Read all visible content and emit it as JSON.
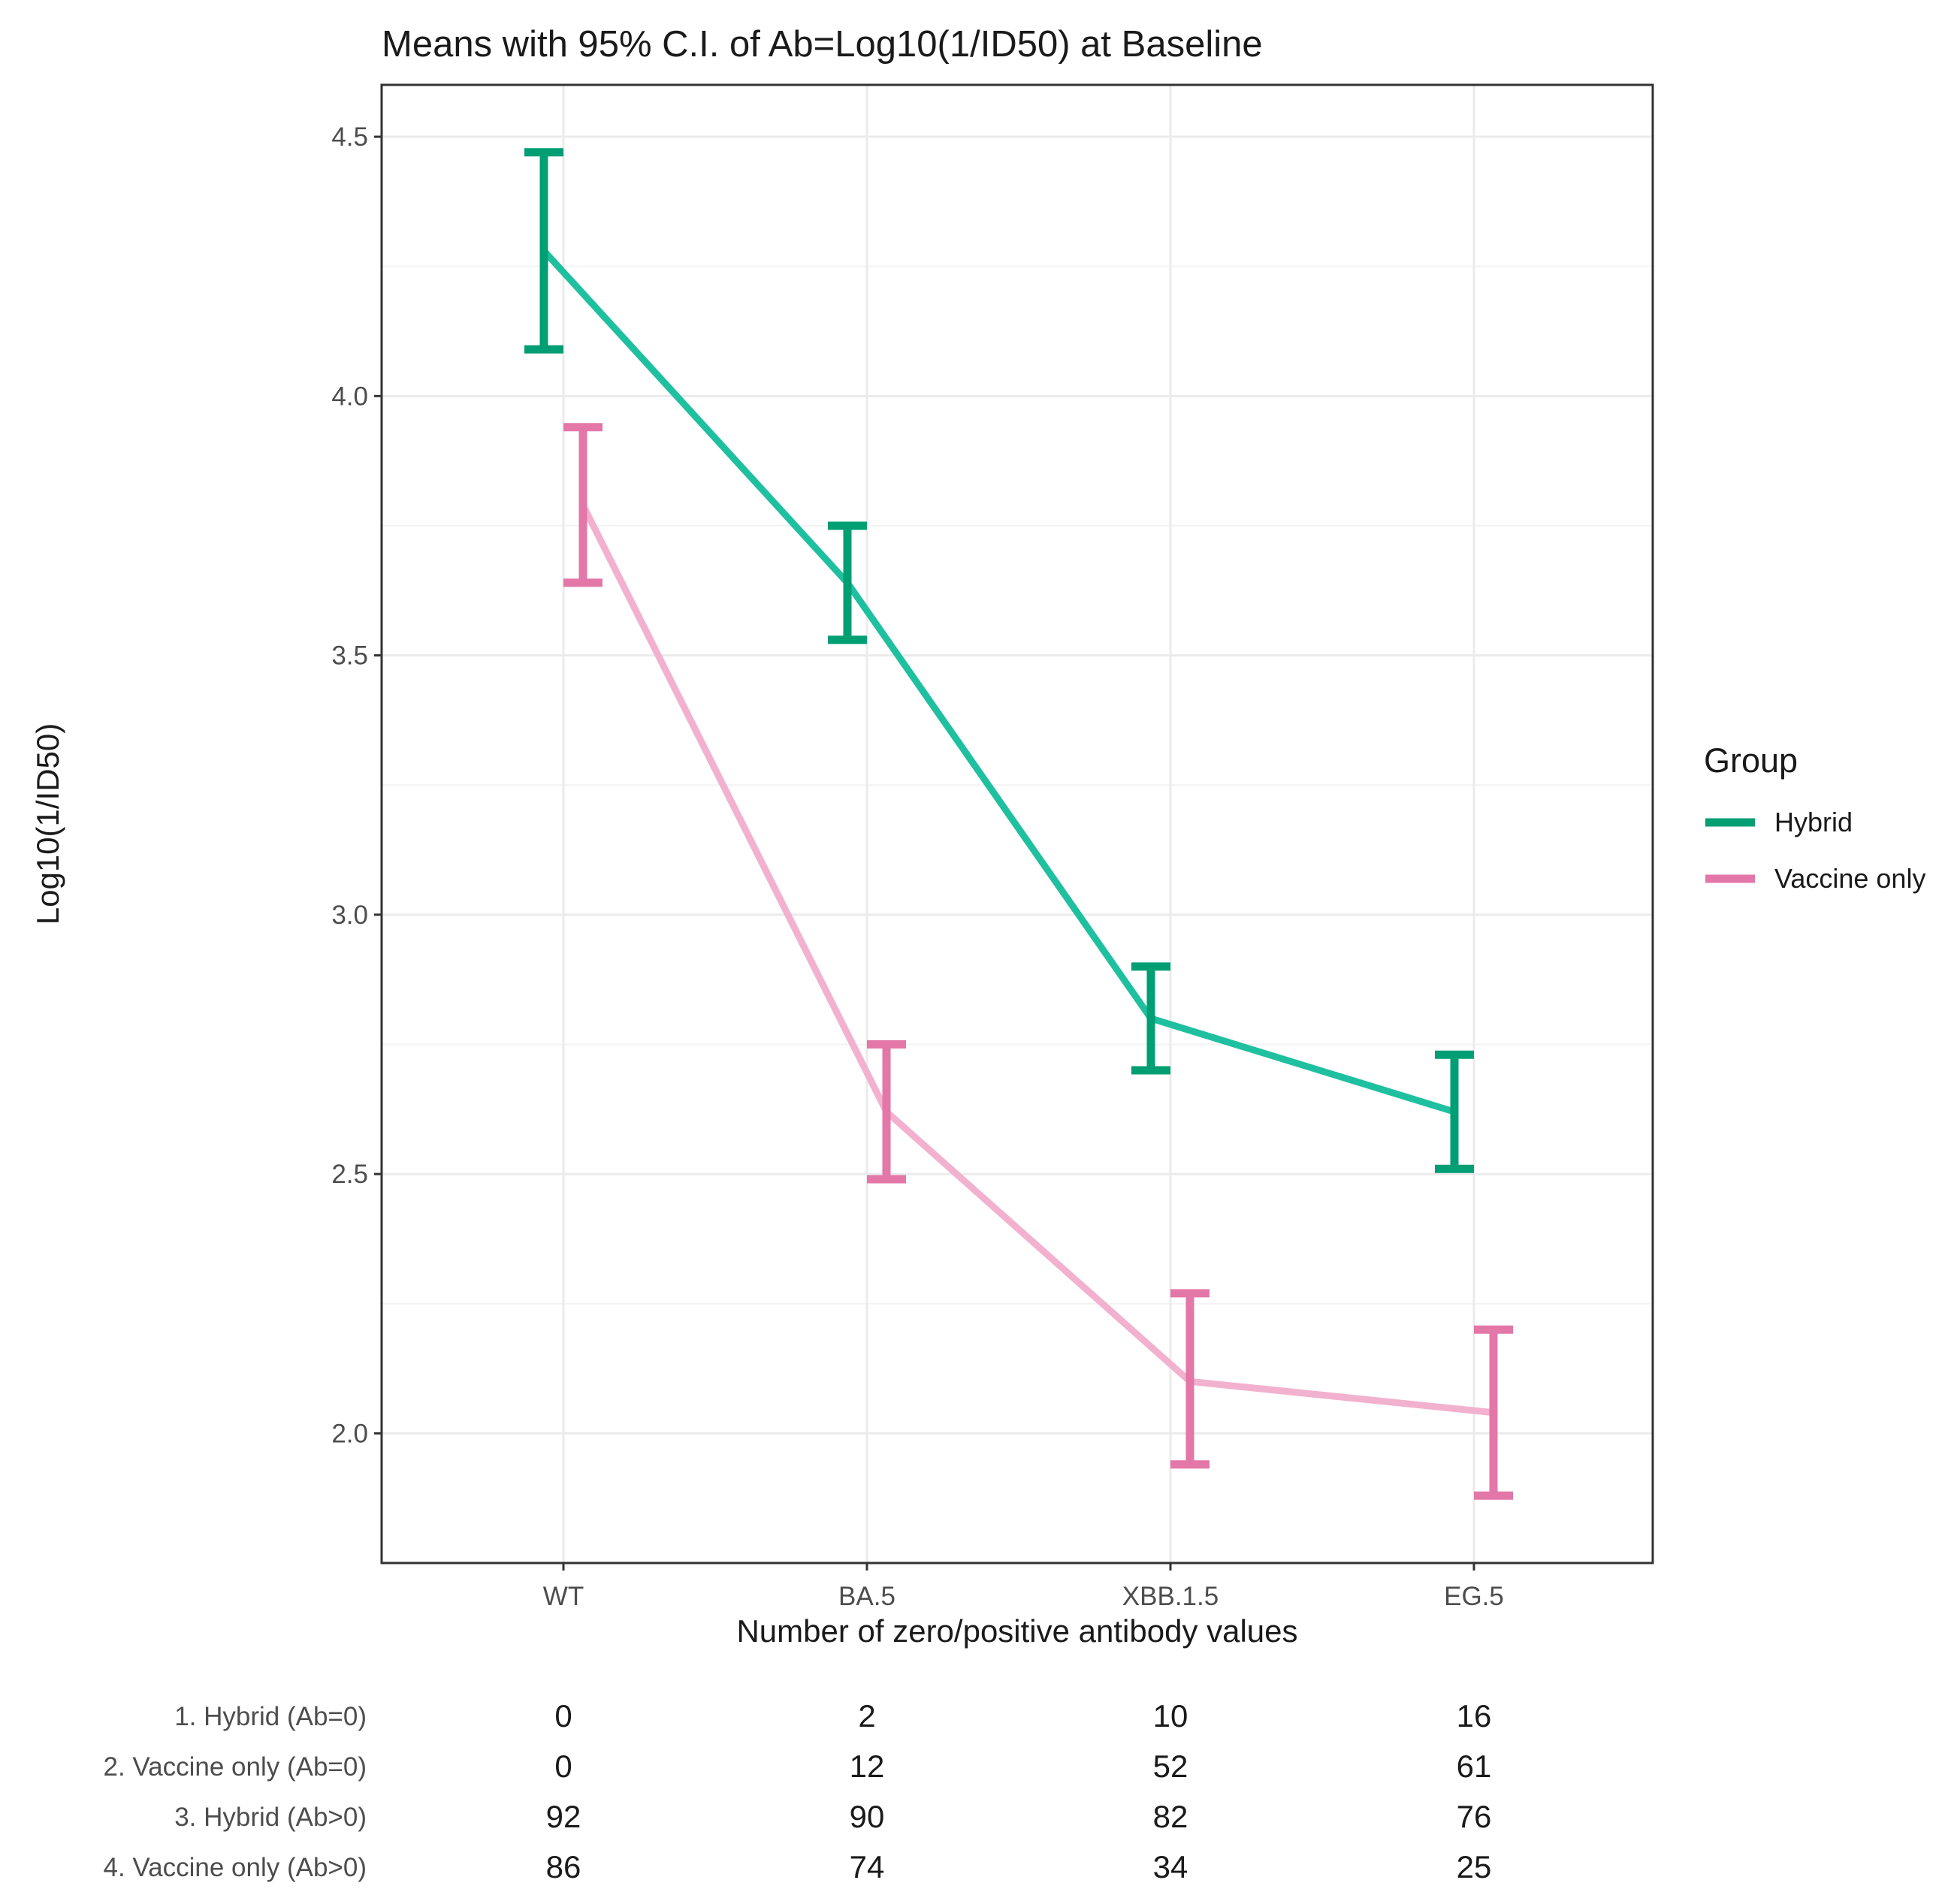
{
  "chart_data": {
    "type": "line",
    "title": "Means with 95% C.I. of Ab=Log10(1/ID50) at Baseline",
    "xlabel": "Number of zero/positive antibody values",
    "ylabel": "Log10(1/ID50)",
    "categories": [
      "WT",
      "BA.5",
      "XBB.1.5",
      "EG.5"
    ],
    "ylim": [
      1.75,
      4.6
    ],
    "yticks": [
      "2.0",
      "2.5",
      "3.0",
      "3.5",
      "4.0",
      "4.5"
    ],
    "legend": {
      "title": "Group",
      "position": "right"
    },
    "series": [
      {
        "name": "Hybrid",
        "color": "#009E73",
        "line_color": "#1FC0A0",
        "mean": [
          4.28,
          3.64,
          2.8,
          2.62
        ],
        "lower": [
          4.09,
          3.53,
          2.7,
          2.51
        ],
        "upper": [
          4.47,
          3.75,
          2.9,
          2.73
        ]
      },
      {
        "name": "Vaccine only",
        "color": "#E377A8",
        "line_color": "#F2B1CF",
        "mean": [
          3.79,
          2.62,
          2.1,
          2.04
        ],
        "lower": [
          3.64,
          2.49,
          1.94,
          1.88
        ],
        "upper": [
          3.94,
          2.75,
          2.27,
          2.2
        ]
      }
    ],
    "table": {
      "rows": [
        {
          "label": "1. Hybrid (Ab=0)",
          "values": [
            "0",
            "2",
            "10",
            "16"
          ]
        },
        {
          "label": "2. Vaccine only (Ab=0)",
          "values": [
            "0",
            "12",
            "52",
            "61"
          ]
        },
        {
          "label": "3. Hybrid (Ab>0)",
          "values": [
            "92",
            "90",
            "82",
            "76"
          ]
        },
        {
          "label": "4. Vaccine only (Ab>0)",
          "values": [
            "86",
            "74",
            "34",
            "25"
          ]
        }
      ]
    }
  }
}
